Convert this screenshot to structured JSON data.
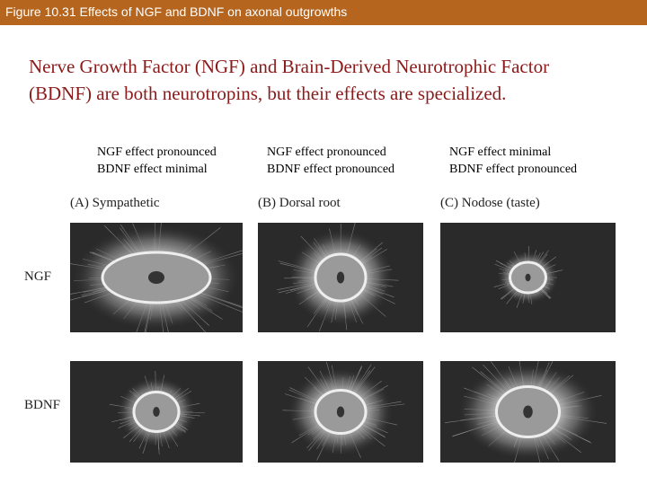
{
  "header": {
    "title": "Figure 10.31  Effects of NGF and BDNF on axonal outgrowths"
  },
  "intro": [
    "Nerve Growth Factor (NGF) and Brain-Derived Neurotrophic Factor",
    "(BDNF) are both neurotropins, but their effects are specialized."
  ],
  "columns": [
    {
      "note": [
        "NGF  effect pronounced",
        "BDNF effect minimal"
      ],
      "label": "(A)  Sympathetic"
    },
    {
      "note": [
        "NGF effect pronounced",
        "BDNF effect pronounced"
      ],
      "label": "(B)  Dorsal root"
    },
    {
      "note": [
        "NGF effect minimal",
        "BDNF effect pronounced"
      ],
      "label": "(C)  Nodose (taste)"
    }
  ],
  "rows": [
    "NGF",
    "BDNF"
  ]
}
